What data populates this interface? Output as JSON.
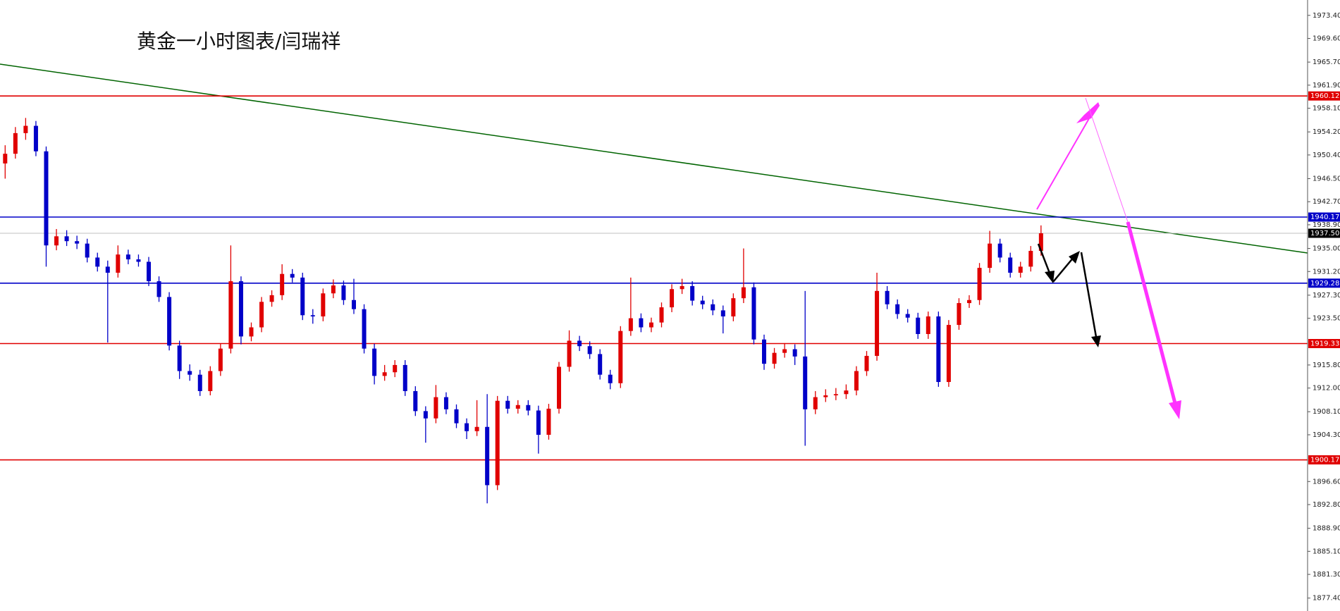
{
  "chart_data": {
    "type": "candlestick",
    "title": "黄金一小时图表/闫瑞祥",
    "up_color": "#e00000",
    "down_color": "#0000c8",
    "ylim": [
      1875.27,
      1975.93
    ],
    "yticks": [
      {
        "value": 1973.4,
        "label": "1973.40"
      },
      {
        "value": 1969.6,
        "label": "1969.60"
      },
      {
        "value": 1965.7,
        "label": "1965.70"
      },
      {
        "value": 1961.9,
        "label": "1961.90"
      },
      {
        "value": 1958.1,
        "label": "1958.10"
      },
      {
        "value": 1954.2,
        "label": "1954.20"
      },
      {
        "value": 1950.4,
        "label": "1950.40"
      },
      {
        "value": 1946.5,
        "label": "1946.50"
      },
      {
        "value": 1942.7,
        "label": "1942.70"
      },
      {
        "value": 1938.9,
        "label": "1938.90"
      },
      {
        "value": 1935.0,
        "label": "1935.00"
      },
      {
        "value": 1931.2,
        "label": "1931.20"
      },
      {
        "value": 1927.3,
        "label": "1927.30"
      },
      {
        "value": 1923.5,
        "label": "1923.50"
      },
      {
        "value": 1915.8,
        "label": "1915.80"
      },
      {
        "value": 1912.0,
        "label": "1912.00"
      },
      {
        "value": 1908.1,
        "label": "1908.10"
      },
      {
        "value": 1904.3,
        "label": "1904.30"
      },
      {
        "value": 1896.6,
        "label": "1896.60"
      },
      {
        "value": 1892.8,
        "label": "1892.80"
      },
      {
        "value": 1888.9,
        "label": "1888.90"
      },
      {
        "value": 1885.1,
        "label": "1885.10"
      },
      {
        "value": 1881.3,
        "label": "1881.30"
      },
      {
        "value": 1877.4,
        "label": "1877.40"
      }
    ],
    "levels": [
      {
        "value": 1960.12,
        "label": "1960.12",
        "color": "#e00000"
      },
      {
        "value": 1940.17,
        "label": "1940.17",
        "color": "#0000c8"
      },
      {
        "value": 1937.5,
        "label": "1937.50",
        "color": "#000000"
      },
      {
        "value": 1929.28,
        "label": "1929.28",
        "color": "#0000c8"
      },
      {
        "value": 1919.33,
        "label": "1919.33",
        "color": "#e00000"
      },
      {
        "value": 1900.17,
        "label": "1900.17",
        "color": "#e00000"
      }
    ],
    "open": [
      1949.0,
      1950.6,
      1954.0,
      1955.2,
      1951.0,
      1935.5,
      1937.0,
      1936.2,
      1935.8,
      1933.5,
      1932.0,
      1931.0,
      1934.0,
      1933.2,
      1932.8,
      1929.6,
      1927.0,
      1919.0,
      1914.8,
      1914.2,
      1911.5,
      1914.8,
      1918.5,
      1929.6,
      1920.5,
      1922.0,
      1926.2,
      1927.3,
      1930.8,
      1930.2,
      1924.0,
      1923.8,
      1927.6,
      1928.9,
      1926.5,
      1925.0,
      1918.5,
      1914.0,
      1914.6,
      1915.8,
      1911.5,
      1908.2,
      1907.0,
      1910.5,
      1908.5,
      1906.2,
      1904.9,
      1905.6,
      1896.0,
      1909.9,
      1908.6,
      1909.2,
      1908.3,
      1904.3,
      1908.6,
      1915.5,
      1919.8,
      1918.9,
      1917.6,
      1914.2,
      1912.8,
      1921.4,
      1923.5,
      1922.0,
      1922.8,
      1925.3,
      1928.3,
      1928.8,
      1926.4,
      1925.8,
      1924.8,
      1923.8,
      1926.8,
      1928.6,
      1920.0,
      1916.0,
      1917.8,
      1918.4,
      1917.2,
      1908.5,
      1910.5,
      1910.8,
      1911.0,
      1911.6,
      1914.8,
      1917.3,
      1928.0,
      1925.8,
      1924.2,
      1923.6,
      1920.9,
      1923.8,
      1913.0,
      1922.4,
      1926.0,
      1926.5,
      1931.8,
      1935.8,
      1933.5,
      1931.0,
      1932.0,
      1934.6
    ],
    "high": [
      1952.0,
      1955.0,
      1956.5,
      1956.0,
      1951.8,
      1938.2,
      1938.0,
      1937.1,
      1936.6,
      1934.3,
      1933.0,
      1935.5,
      1934.8,
      1934.0,
      1933.6,
      1930.4,
      1927.8,
      1919.8,
      1915.9,
      1915.0,
      1915.6,
      1919.3,
      1935.5,
      1930.4,
      1922.8,
      1927.0,
      1928.1,
      1932.4,
      1931.6,
      1931.0,
      1925.0,
      1928.4,
      1929.9,
      1929.7,
      1930.0,
      1925.8,
      1919.3,
      1915.8,
      1916.6,
      1916.6,
      1912.3,
      1909.0,
      1912.5,
      1911.3,
      1909.3,
      1907.0,
      1910.0,
      1911.0,
      1910.7,
      1910.7,
      1910.0,
      1910.0,
      1909.1,
      1909.4,
      1916.3,
      1921.5,
      1920.6,
      1919.7,
      1918.4,
      1915.0,
      1922.2,
      1930.2,
      1924.3,
      1923.6,
      1926.1,
      1929.1,
      1930.0,
      1929.6,
      1927.2,
      1926.6,
      1925.6,
      1927.6,
      1935.0,
      1929.4,
      1920.8,
      1918.6,
      1919.4,
      1919.2,
      1928.0,
      1911.5,
      1911.8,
      1912.0,
      1912.6,
      1915.6,
      1918.1,
      1931.0,
      1928.8,
      1926.6,
      1925.0,
      1924.4,
      1924.6,
      1924.6,
      1923.2,
      1926.8,
      1927.3,
      1932.6,
      1937.9,
      1936.6,
      1934.3,
      1932.8,
      1935.4,
      1938.8
    ],
    "low": [
      1946.5,
      1949.8,
      1952.9,
      1950.2,
      1932.0,
      1934.7,
      1935.4,
      1934.9,
      1932.7,
      1931.2,
      1919.5,
      1930.2,
      1932.4,
      1932.0,
      1928.8,
      1926.2,
      1918.2,
      1913.5,
      1913.2,
      1910.7,
      1910.8,
      1914.0,
      1917.7,
      1919.2,
      1919.7,
      1921.2,
      1925.4,
      1926.5,
      1929.4,
      1923.2,
      1922.6,
      1923.0,
      1926.8,
      1925.7,
      1924.2,
      1917.7,
      1912.6,
      1913.2,
      1913.8,
      1910.7,
      1907.4,
      1903.0,
      1906.2,
      1907.7,
      1905.4,
      1903.6,
      1904.1,
      1893.0,
      1895.2,
      1907.8,
      1907.8,
      1907.5,
      1901.2,
      1903.5,
      1907.8,
      1914.7,
      1918.1,
      1916.8,
      1913.4,
      1911.8,
      1912.0,
      1920.6,
      1921.2,
      1921.2,
      1922.0,
      1924.5,
      1927.5,
      1925.6,
      1925.0,
      1924.0,
      1921.0,
      1923.0,
      1926.0,
      1919.2,
      1915.0,
      1915.2,
      1917.0,
      1915.8,
      1902.5,
      1907.7,
      1909.7,
      1910.0,
      1910.2,
      1910.8,
      1914.0,
      1916.5,
      1925.0,
      1923.4,
      1922.8,
      1920.1,
      1920.1,
      1912.2,
      1912.2,
      1921.6,
      1925.2,
      1925.7,
      1931.0,
      1932.7,
      1930.2,
      1930.2,
      1931.2,
      1933.8
    ],
    "close": [
      1950.6,
      1954.0,
      1955.2,
      1951.0,
      1935.5,
      1937.0,
      1936.2,
      1935.8,
      1933.5,
      1932.0,
      1931.0,
      1934.0,
      1933.2,
      1932.8,
      1929.6,
      1927.0,
      1919.0,
      1914.8,
      1914.2,
      1911.5,
      1914.8,
      1918.5,
      1929.6,
      1920.5,
      1922.0,
      1926.2,
      1927.3,
      1930.8,
      1930.2,
      1924.0,
      1923.8,
      1927.6,
      1928.9,
      1926.5,
      1925.0,
      1918.5,
      1914.0,
      1914.6,
      1915.8,
      1911.5,
      1908.2,
      1907.0,
      1910.5,
      1908.5,
      1906.2,
      1904.9,
      1905.6,
      1896.0,
      1909.9,
      1908.6,
      1909.2,
      1908.3,
      1904.3,
      1908.6,
      1915.5,
      1919.8,
      1918.9,
      1917.6,
      1914.2,
      1912.8,
      1921.4,
      1923.5,
      1922.0,
      1922.8,
      1925.3,
      1928.3,
      1928.8,
      1926.4,
      1925.8,
      1924.8,
      1923.8,
      1926.8,
      1928.6,
      1920.0,
      1916.0,
      1917.8,
      1918.4,
      1917.2,
      1908.5,
      1910.5,
      1910.8,
      1911.0,
      1911.6,
      1914.8,
      1917.3,
      1928.0,
      1925.8,
      1924.2,
      1923.6,
      1920.9,
      1923.8,
      1913.0,
      1922.4,
      1926.0,
      1926.5,
      1931.8,
      1935.8,
      1933.5,
      1931.0,
      1932.0,
      1934.6,
      1937.5
    ]
  }
}
